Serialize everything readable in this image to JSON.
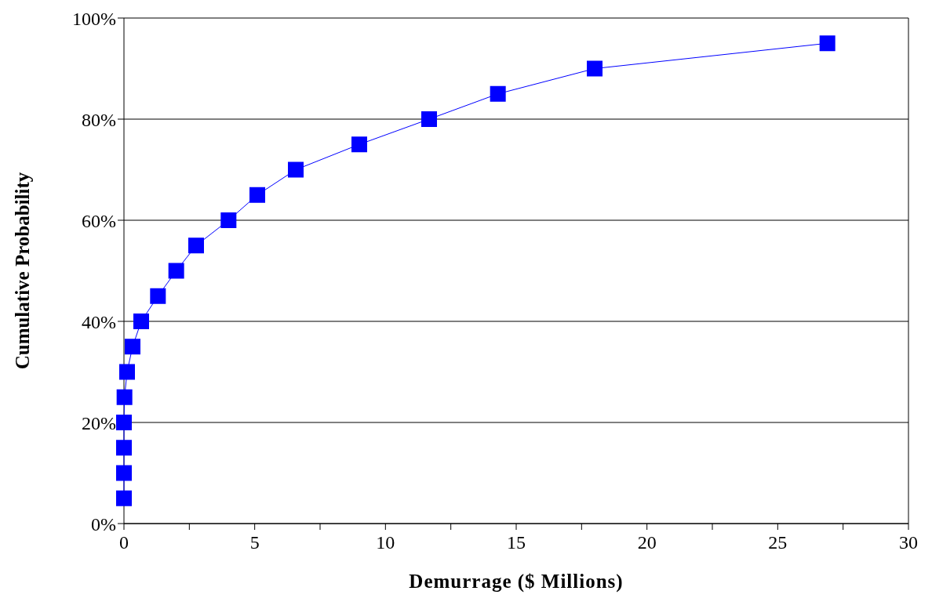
{
  "chart_data": {
    "type": "line",
    "xlabel": "Demurrage ($ Millions)",
    "ylabel": "Cumulative Probability",
    "series": [
      {
        "color": "#0000ff",
        "x": [
          0,
          0,
          0,
          0,
          0.02,
          0.12,
          0.33,
          0.66,
          1.3,
          2.0,
          2.76,
          4.0,
          5.1,
          6.57,
          9.0,
          11.67,
          14.3,
          18.0,
          26.9
        ],
        "values": [
          5,
          10,
          15,
          20,
          25,
          30,
          35,
          40,
          45,
          50,
          55,
          60,
          65,
          70,
          75,
          80,
          85,
          90,
          95
        ]
      }
    ],
    "xlim": [
      0,
      30
    ],
    "xticks": [
      0,
      {
        "value": 2.5,
        "label": null
      },
      5,
      {
        "value": 7.5,
        "label": null
      },
      10,
      {
        "value": 12.5,
        "label": null
      },
      15,
      {
        "value": 17.5,
        "label": null
      },
      20,
      {
        "value": 22.5,
        "label": null
      },
      25,
      {
        "value": 27.5,
        "label": null
      },
      30
    ],
    "ylim": [
      0,
      100
    ],
    "yticks": [
      {
        "value": 0,
        "label": "0%"
      },
      {
        "value": 20,
        "label": "20%"
      },
      {
        "value": 40,
        "label": "40%"
      },
      {
        "value": 60,
        "label": "60%"
      },
      {
        "value": 80,
        "label": "80%"
      },
      {
        "value": 100,
        "label": "100%"
      }
    ],
    "grid": "y",
    "marker": "square",
    "line_style": "solid",
    "legend": false
  }
}
